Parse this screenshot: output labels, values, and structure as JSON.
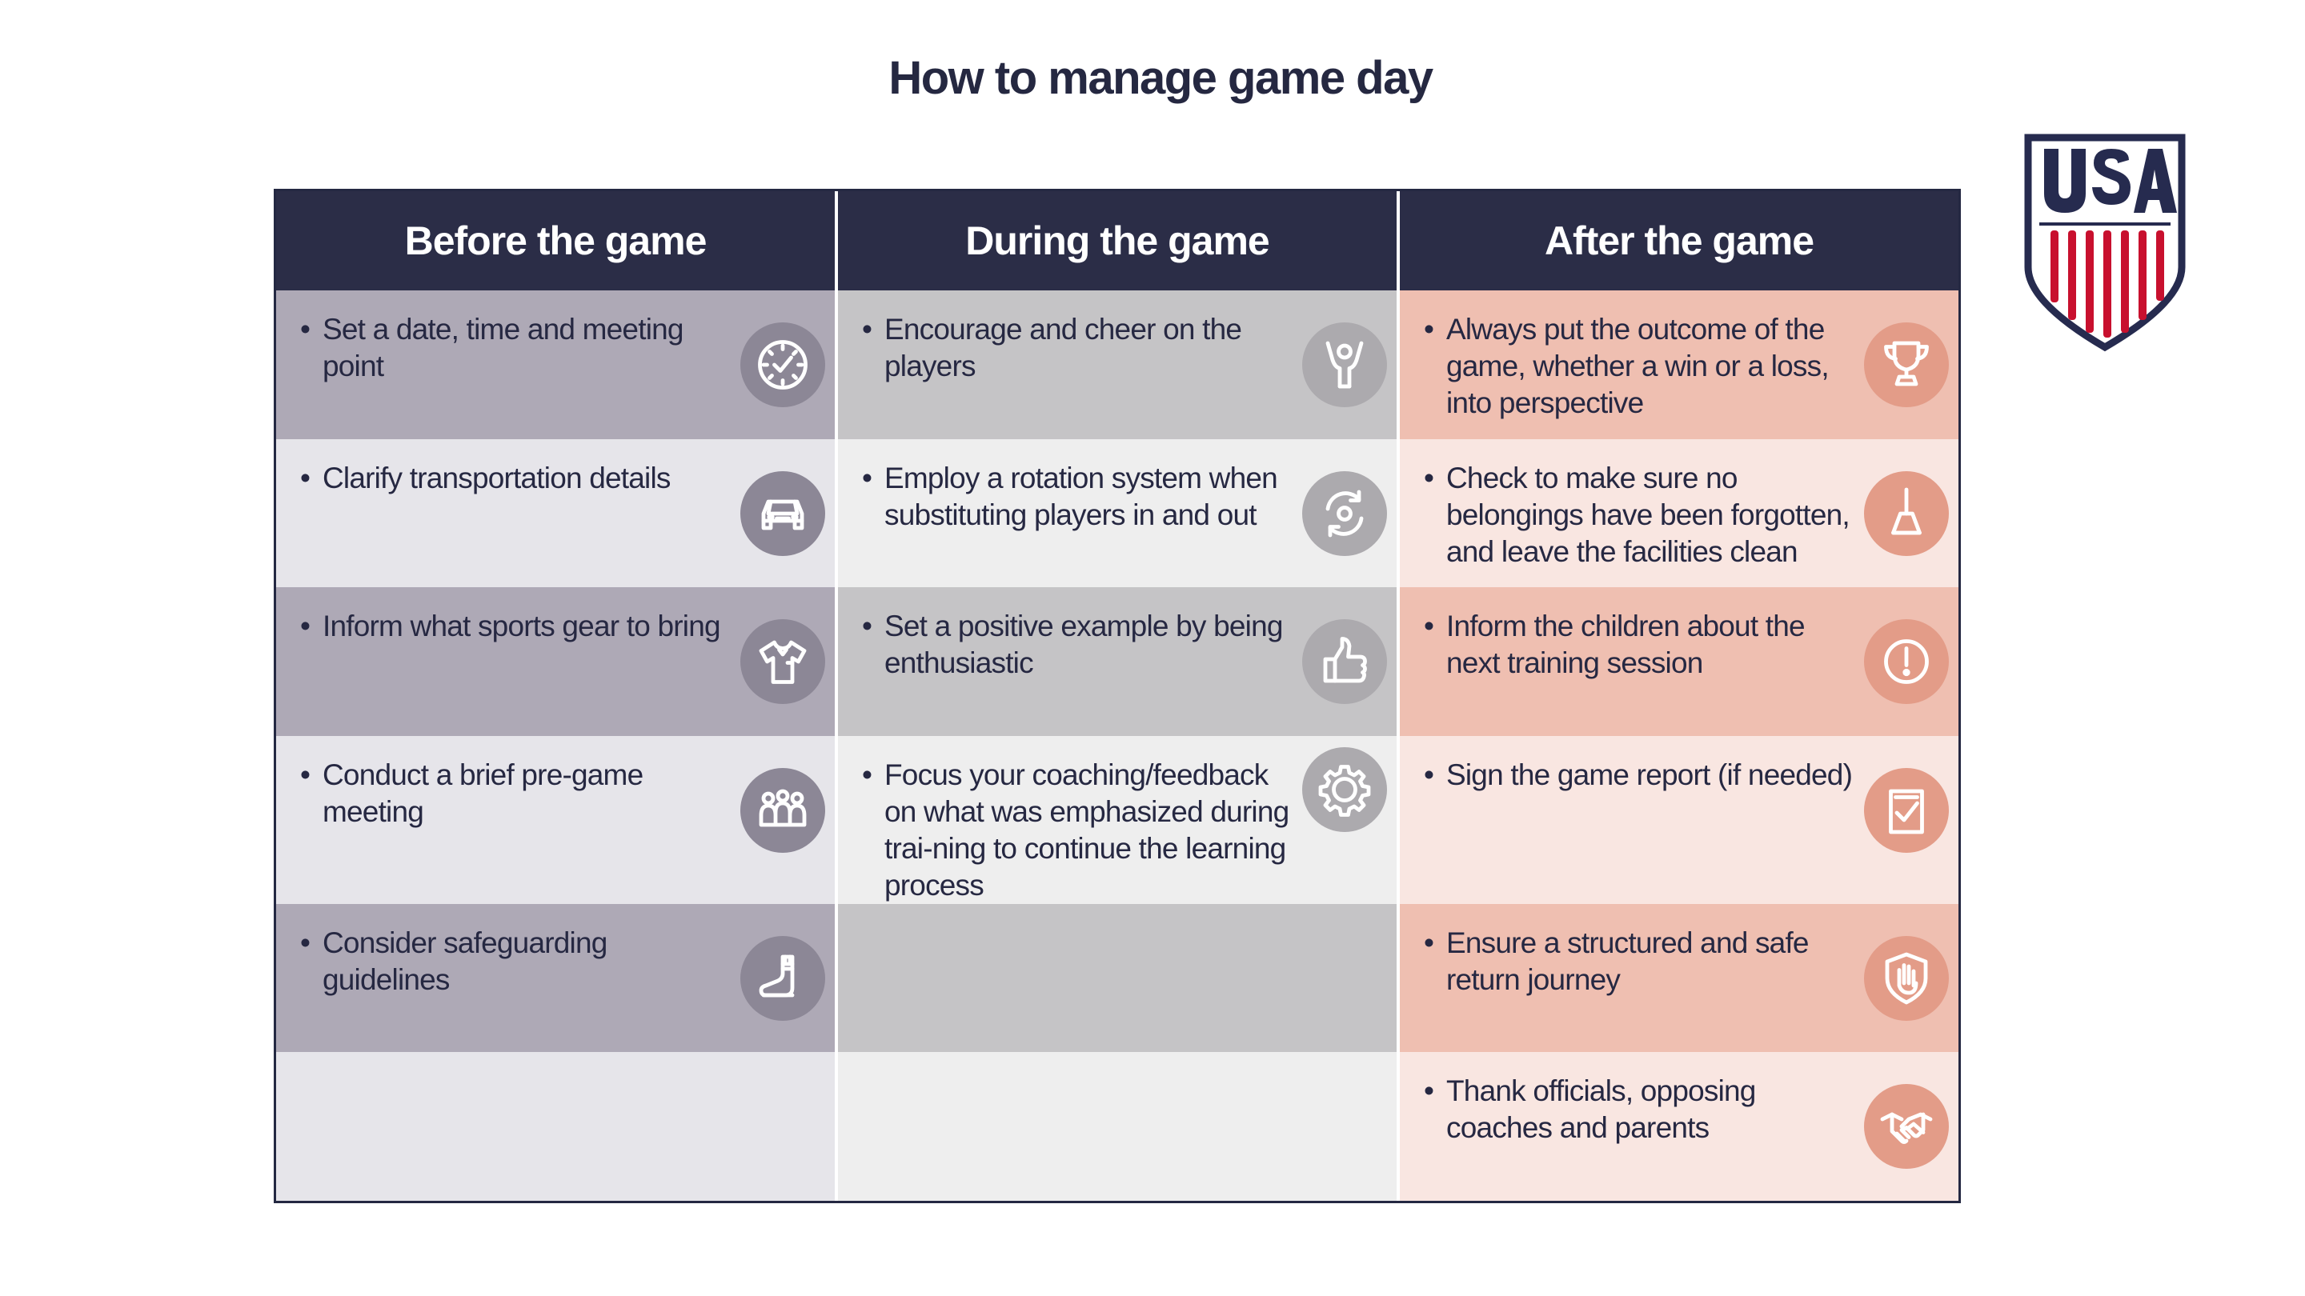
{
  "title": "How to manage game day",
  "logo": {
    "text": "USA",
    "navy": "#262b4f",
    "red": "#c8102e"
  },
  "columns": [
    {
      "heading": "Before the game",
      "items": [
        {
          "text": "Set a date, time and meeting point",
          "icon": "clock-icon"
        },
        {
          "text": "Clarify  transportation details",
          "icon": "car-icon"
        },
        {
          "text": "Inform what sports gear to bring",
          "icon": "jersey-icon"
        },
        {
          "text": "Conduct a brief pre-game meeting",
          "icon": "group-icon"
        },
        {
          "text": "Consider safeguarding guidelines",
          "icon": "boot-icon"
        }
      ]
    },
    {
      "heading": "During the game",
      "items": [
        {
          "text": "Encourage and cheer on the players",
          "icon": "cheering-person-icon"
        },
        {
          "text": "Employ a rotation system when substituting players in and out",
          "icon": "rotation-icon"
        },
        {
          "text": "Set a positive example by being enthusiastic",
          "icon": "thumbs-up-icon"
        },
        {
          "text": "Focus your coaching/feedback on what was emphasized during trai-ning to continue the learning process",
          "icon": "gear-icon"
        }
      ]
    },
    {
      "heading": "After the game",
      "items": [
        {
          "text": "Always put the outcome of the game, whether a win or a loss, into perspective",
          "icon": "trophy-icon"
        },
        {
          "text": "Check to make sure no belongings have been forgotten, and leave the facilities clean",
          "icon": "broom-icon"
        },
        {
          "text": "Inform the children about the next training session",
          "icon": "exclamation-icon"
        },
        {
          "text": "Sign the game report (if needed)",
          "icon": "report-checkmark-icon"
        },
        {
          "text": "Ensure a structured and safe return journey",
          "icon": "hand-shield-icon"
        },
        {
          "text": "Thank officials, opposing coaches and parents",
          "icon": "handshake-icon"
        }
      ]
    }
  ],
  "colors": {
    "header": "#2b2d47",
    "before": [
      "#aea9b6",
      "#e6e5ea"
    ],
    "during": [
      "#c5c4c6",
      "#eeeeee"
    ],
    "after": [
      "#efbfb1",
      "#f9e6e1"
    ]
  }
}
